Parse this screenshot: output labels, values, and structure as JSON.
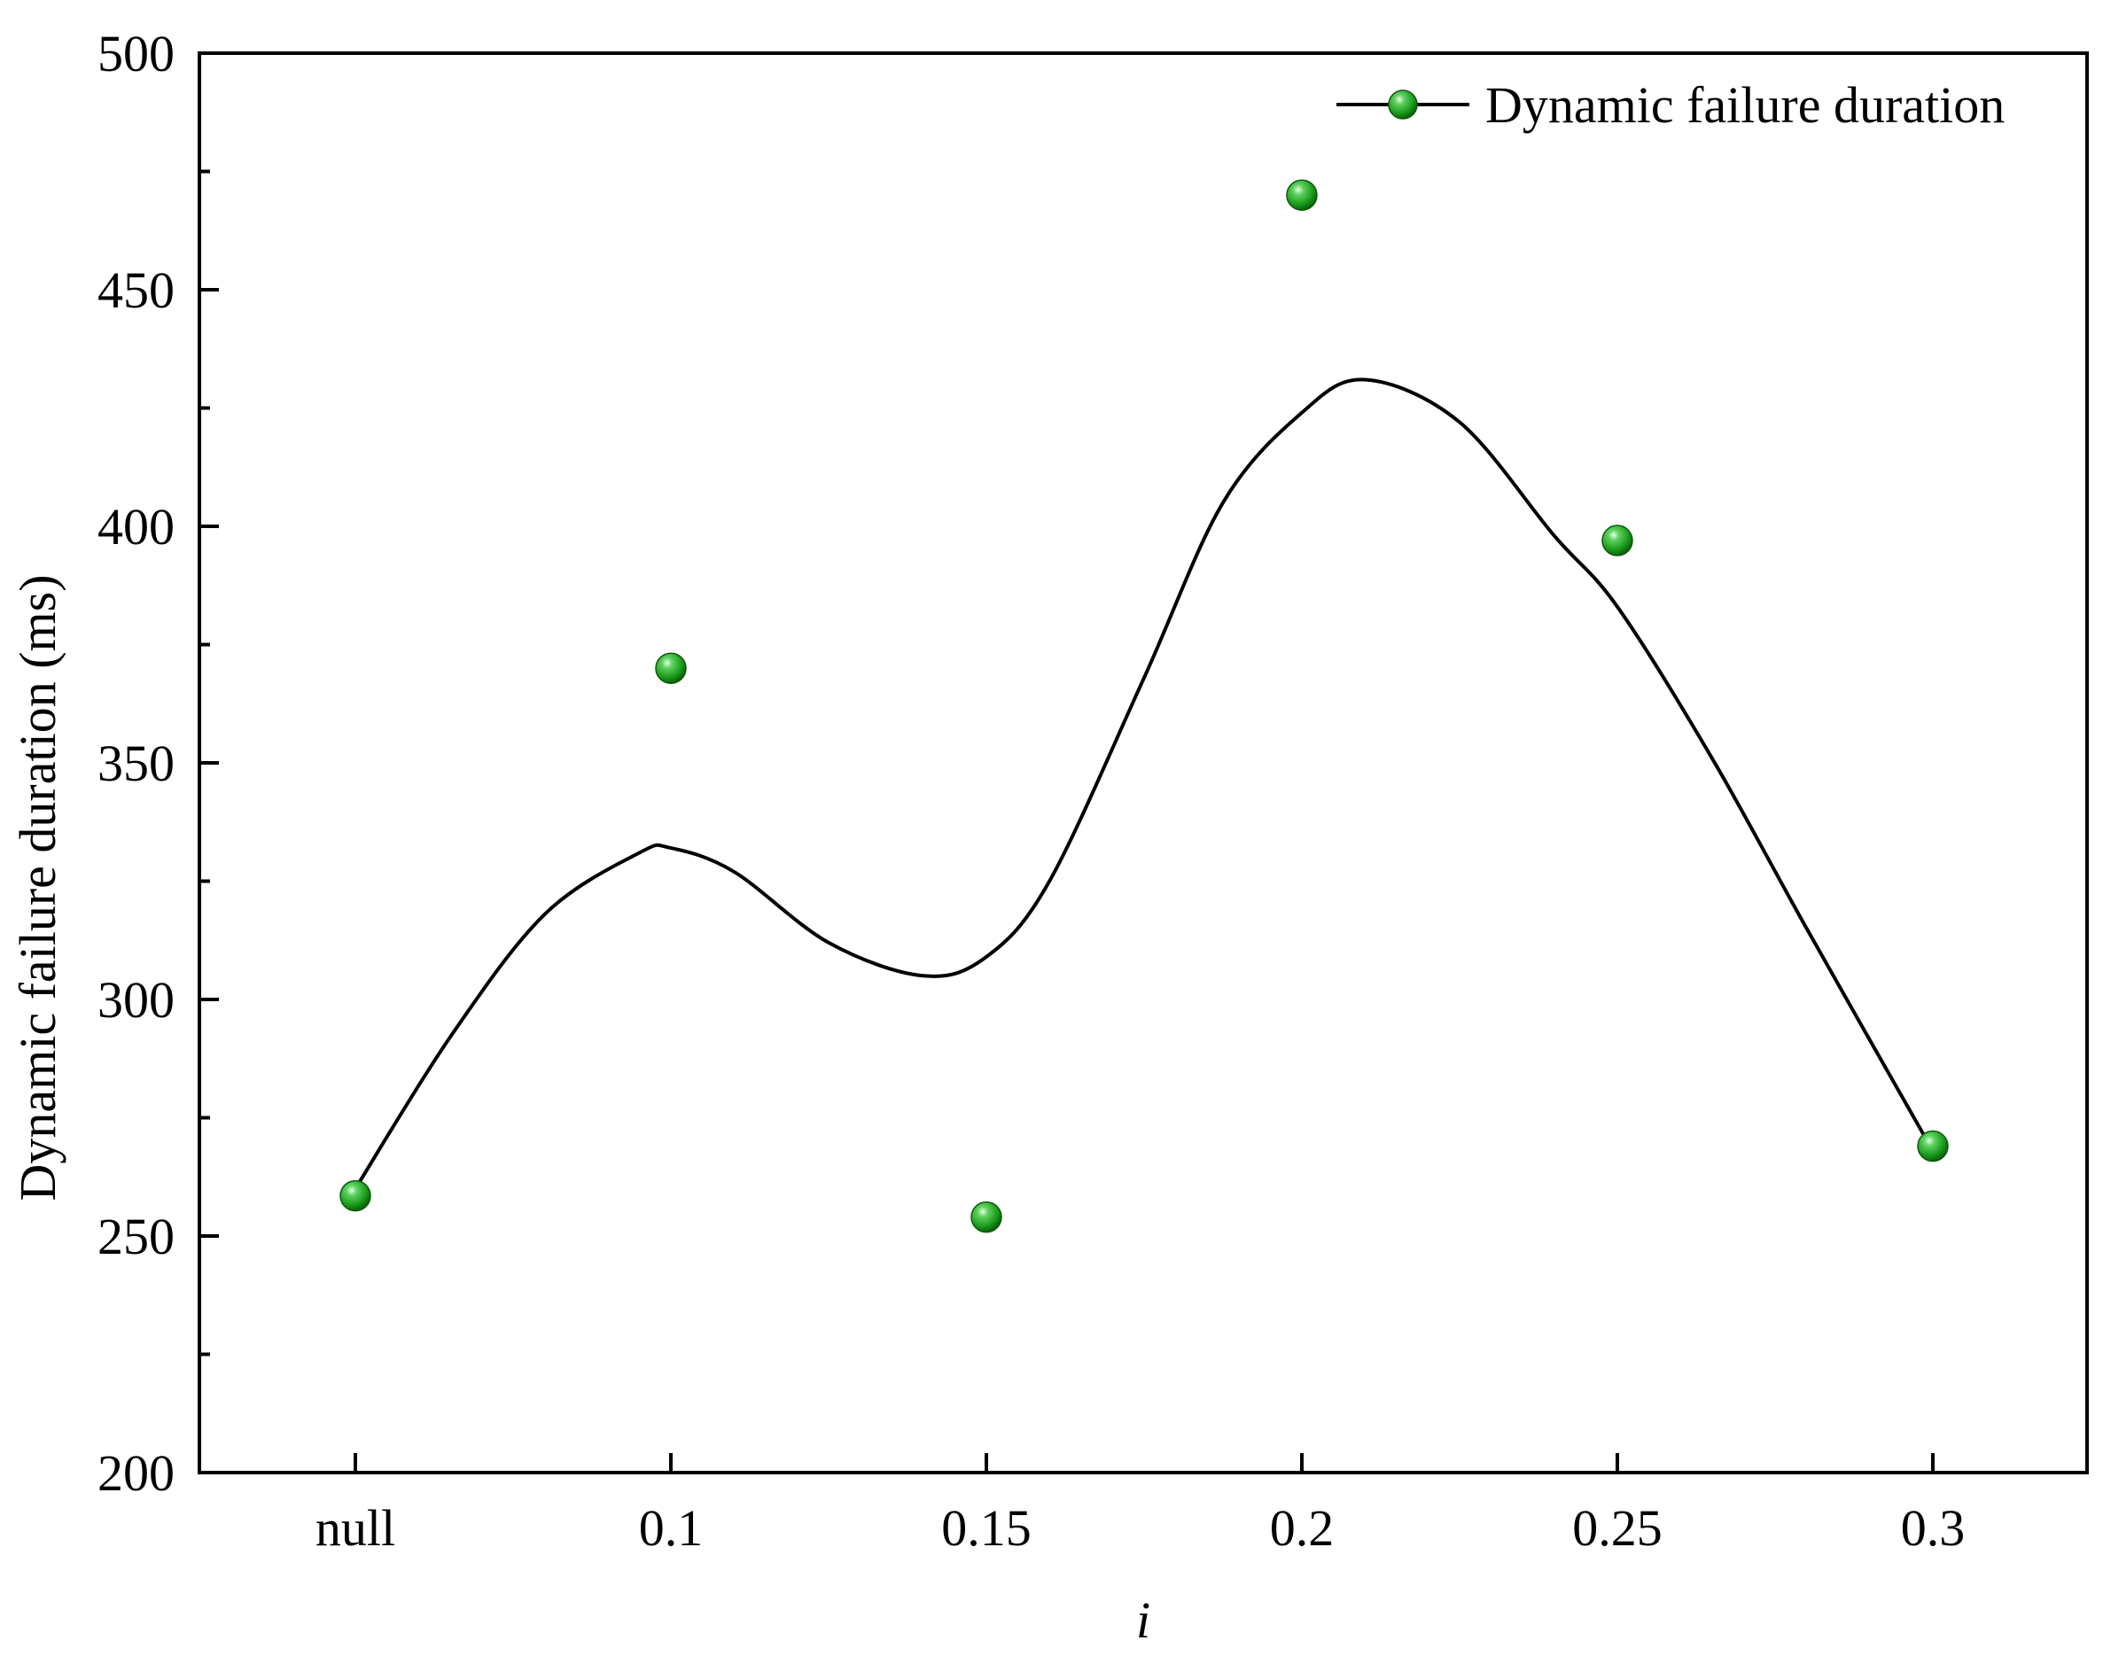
{
  "chart_data": {
    "type": "scatter",
    "categories": [
      "null",
      "0.1",
      "0.15",
      "0.2",
      "0.25",
      "0.3"
    ],
    "series": [
      {
        "name": "Dynamic failure duration",
        "values": [
          258.5,
          370,
          254,
          470,
          397,
          269
        ],
        "marker_color": "#1a9a1a",
        "line_color": "#000000",
        "line_style": "smooth-fit"
      }
    ],
    "fit_curve": {
      "x": [
        0,
        0.3,
        0.6,
        0.9,
        1,
        1.2,
        1.5,
        1.8,
        2,
        2.2,
        2.5,
        2.75,
        3,
        3.2,
        3.5,
        3.8,
        4,
        4.3,
        4.6,
        5
      ],
      "y": [
        260,
        292,
        318,
        331,
        332,
        327,
        312,
        305,
        309,
        325,
        368,
        405,
        424,
        431,
        422,
        398,
        383,
        351,
        315,
        268
      ]
    },
    "xlabel": "i",
    "ylabel": "Dynamic failure duration (ms)",
    "ylim": [
      200,
      500
    ],
    "yticks": [
      200,
      250,
      300,
      350,
      400,
      450,
      500
    ],
    "grid": false,
    "legend_position": "top-right"
  }
}
